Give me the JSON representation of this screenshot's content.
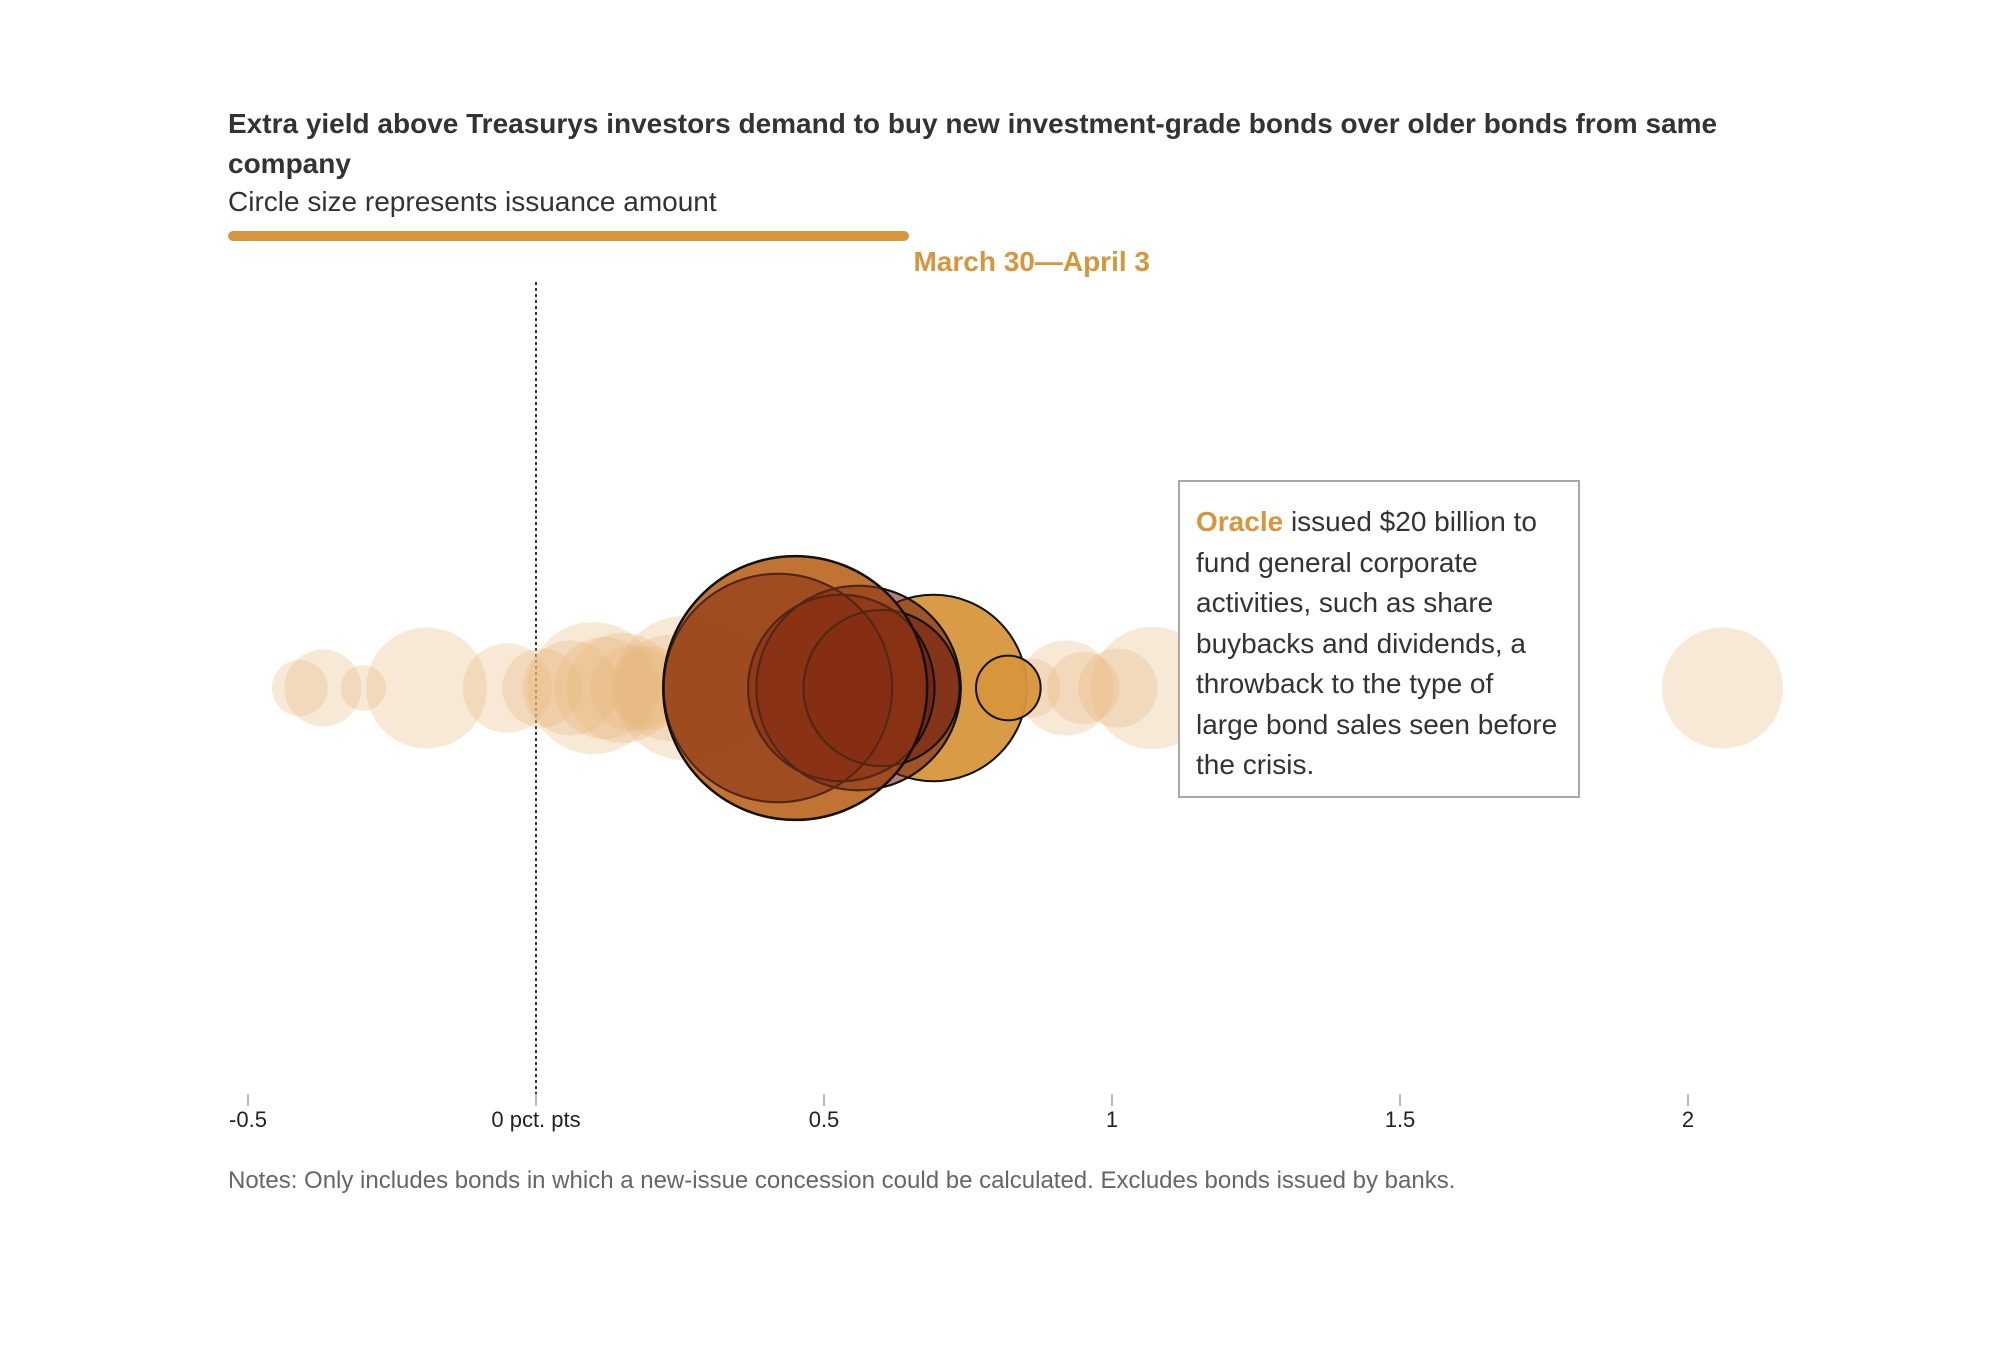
{
  "header": {
    "title": "Extra yield above Treasurys investors demand to buy new investment-grade bonds over older bonds from same company",
    "subtitle": "Circle size represents issuance amount",
    "date_range": "March 30—April 3"
  },
  "timeline": {
    "progress_fraction": 0.77
  },
  "annotation": {
    "company": "Oracle",
    "text": " issued $20 billion to fund general corporate activities, such as share buybacks and dividends, a throwback to the type of large bond sales seen before the crisis."
  },
  "notes": "Notes: Only includes bonds in which a new-issue concession could be calculated. Excludes bonds issued by banks.",
  "colors": {
    "accent": "#d8963c",
    "faded_bubble": "#f0dcc0",
    "highlight_stroke": "#111111",
    "highlight_dark": "#6e1a0f",
    "highlight_mid": "#a0421a"
  },
  "chart_data": {
    "type": "scatter",
    "xlim": [
      -0.55,
      2.2
    ],
    "ticks": [
      {
        "value": -0.5,
        "label": "-0.5"
      },
      {
        "value": 0,
        "label": "0 pct. pts"
      },
      {
        "value": 0.5,
        "label": "0.5"
      },
      {
        "value": 1,
        "label": "1"
      },
      {
        "value": 1.5,
        "label": "1.5"
      },
      {
        "value": 2,
        "label": "2"
      }
    ],
    "reference_line_x": 0,
    "bubbles_other_weeks": [
      {
        "x": -0.41,
        "size": 0.9
      },
      {
        "x": -0.37,
        "size": 1.7
      },
      {
        "x": -0.3,
        "size": 0.6
      },
      {
        "x": -0.19,
        "size": 4.2
      },
      {
        "x": -0.05,
        "size": 2.3
      },
      {
        "x": 0.01,
        "size": 1.8
      },
      {
        "x": 0.06,
        "size": 2.6
      },
      {
        "x": 0.1,
        "size": 5.0
      },
      {
        "x": 0.12,
        "size": 3.0
      },
      {
        "x": 0.15,
        "size": 3.5
      },
      {
        "x": 0.17,
        "size": 2.2
      },
      {
        "x": 0.2,
        "size": 2.0
      },
      {
        "x": 0.23,
        "size": 3.2
      },
      {
        "x": 0.26,
        "size": 6.0
      },
      {
        "x": 0.31,
        "size": 4.0
      },
      {
        "x": 0.36,
        "size": 3.0
      },
      {
        "x": 0.86,
        "size": 1.0
      },
      {
        "x": 0.92,
        "size": 2.6
      },
      {
        "x": 0.95,
        "size": 1.5
      },
      {
        "x": 1.01,
        "size": 1.8
      },
      {
        "x": 1.07,
        "size": 4.3
      },
      {
        "x": 1.63,
        "size": 3.0
      },
      {
        "x": 1.67,
        "size": 4.0
      },
      {
        "x": 2.06,
        "size": 4.2
      }
    ],
    "bubbles_selected_week": [
      {
        "x": 0.69,
        "size": 10.0
      },
      {
        "x": 0.82,
        "size": 1.2
      },
      {
        "x": 0.45,
        "size": 20.0
      },
      {
        "x": 0.42,
        "size": 15.0
      },
      {
        "x": 0.56,
        "size": 12.0
      },
      {
        "x": 0.53,
        "size": 10.0
      },
      {
        "x": 0.6,
        "size": 7.0
      }
    ]
  }
}
